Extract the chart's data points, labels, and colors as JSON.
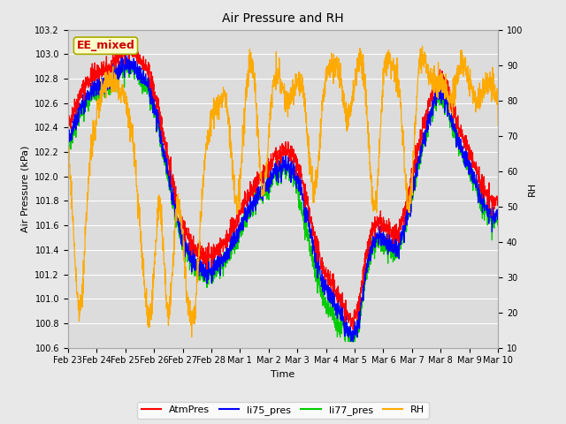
{
  "title": "Air Pressure and RH",
  "xlabel": "Time",
  "ylabel_left": "Air Pressure (kPa)",
  "ylabel_right": "RH",
  "ylim_left": [
    100.6,
    103.2
  ],
  "ylim_right": [
    10,
    100
  ],
  "yticks_left": [
    100.6,
    100.8,
    101.0,
    101.2,
    101.4,
    101.6,
    101.8,
    102.0,
    102.2,
    102.4,
    102.6,
    102.8,
    103.0,
    103.2
  ],
  "yticks_right": [
    10,
    20,
    30,
    40,
    50,
    60,
    70,
    80,
    90,
    100
  ],
  "xtick_labels": [
    "Feb 23",
    "Feb 24",
    "Feb 25",
    "Feb 26",
    "Feb 27",
    "Feb 28",
    "Mar 1",
    "Mar 2",
    "Mar 3",
    "Mar 4",
    "Mar 5",
    "Mar 6",
    "Mar 7",
    "Mar 8",
    "Mar 9",
    "Mar 10"
  ],
  "legend_labels": [
    "AtmPres",
    "li75_pres",
    "li77_pres",
    "RH"
  ],
  "legend_colors": [
    "#ff0000",
    "#0000ff",
    "#00cc00",
    "#ffaa00"
  ],
  "line_colors": {
    "AtmPres": "#ff0000",
    "li75_pres": "#0000ff",
    "li77_pres": "#00cc00",
    "RH": "#ffaa00"
  },
  "annotation_text": "EE_mixed",
  "annotation_color": "#cc0000",
  "annotation_box_color": "#ffffcc",
  "annotation_box_edge": "#aaaa00",
  "background_color": "#e8e8e8",
  "plot_bg_color": "#dcdcdc",
  "grid_color": "#ffffff",
  "figsize": [
    6.4,
    4.8
  ],
  "dpi": 100
}
